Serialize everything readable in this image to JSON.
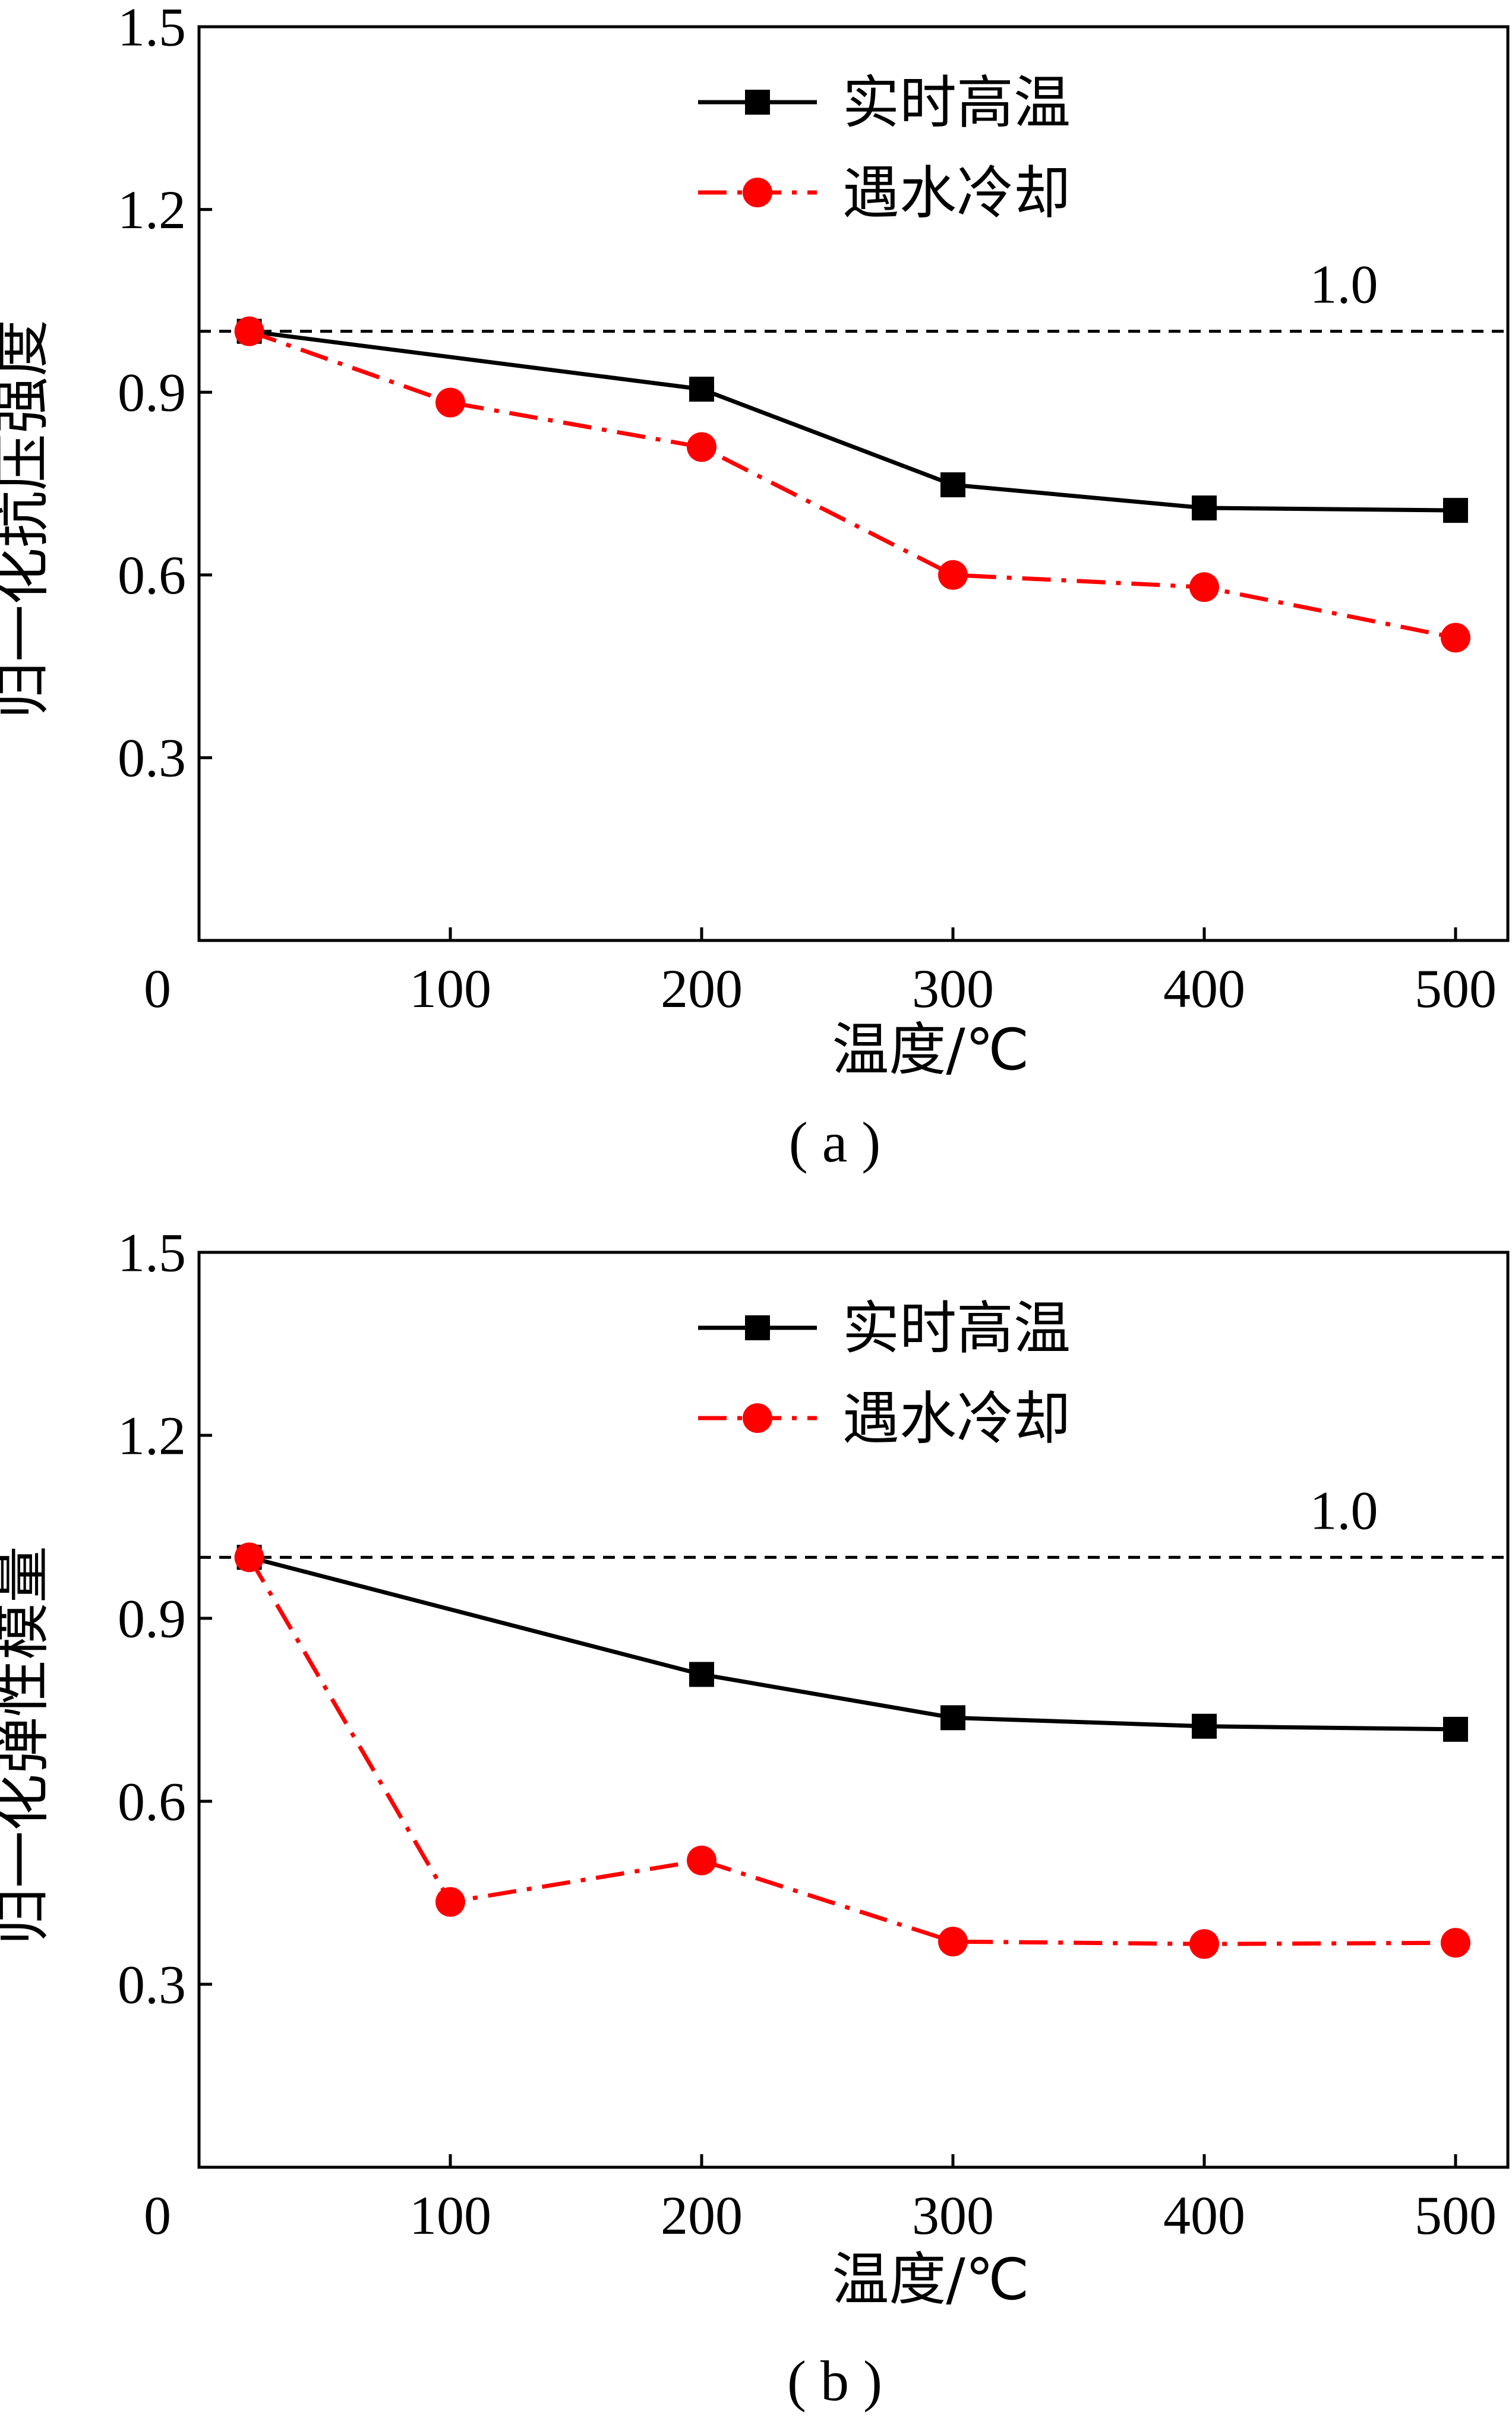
{
  "chart_data": [
    {
      "panel_label": "( a )",
      "type": "line",
      "title": "",
      "xlabel": "温度/℃",
      "ylabel": "归一化抗压强度",
      "xlim": [
        0,
        500
      ],
      "ylim": [
        0,
        1.5
      ],
      "x_ticks": [
        "0",
        "100",
        "200",
        "300",
        "400",
        "500"
      ],
      "y_ticks": [
        "0.3",
        "0.6",
        "0.9",
        "1.2",
        "1.5"
      ],
      "reference_line": {
        "y": 1.0,
        "label": "1.0",
        "style": "dashed"
      },
      "legend": {
        "placement": "top-center"
      },
      "series": [
        {
          "name": "实时高温",
          "color": "#000000",
          "marker": "square",
          "line": "solid",
          "x": [
            20,
            200,
            300,
            400,
            500
          ],
          "y": [
            1.0,
            0.905,
            0.748,
            0.71,
            0.706
          ]
        },
        {
          "name": "遇水冷却",
          "color": "#ff0000",
          "marker": "circle",
          "line": "dash-dot",
          "x": [
            20,
            100,
            200,
            300,
            400,
            500
          ],
          "y": [
            1.0,
            0.883,
            0.81,
            0.6,
            0.58,
            0.497
          ]
        }
      ]
    },
    {
      "panel_label": "( b )",
      "type": "line",
      "title": "",
      "xlabel": "温度/℃",
      "ylabel": "归一化弹性模量",
      "xlim": [
        0,
        500
      ],
      "ylim": [
        0,
        1.5
      ],
      "x_ticks": [
        "0",
        "100",
        "200",
        "300",
        "400",
        "500"
      ],
      "y_ticks": [
        "0.3",
        "0.6",
        "0.9",
        "1.2",
        "1.5"
      ],
      "reference_line": {
        "y": 1.0,
        "label": "1.0",
        "style": "dashed"
      },
      "legend": {
        "placement": "top-center"
      },
      "series": [
        {
          "name": "实时高温",
          "color": "#000000",
          "marker": "square",
          "line": "solid",
          "x": [
            20,
            200,
            300,
            400,
            500
          ],
          "y": [
            1.0,
            0.808,
            0.737,
            0.723,
            0.718
          ]
        },
        {
          "name": "遇水冷却",
          "color": "#ff0000",
          "marker": "circle",
          "line": "dash-dot",
          "x": [
            20,
            100,
            200,
            300,
            400,
            500
          ],
          "y": [
            1.0,
            0.435,
            0.503,
            0.37,
            0.366,
            0.368
          ]
        }
      ]
    }
  ]
}
